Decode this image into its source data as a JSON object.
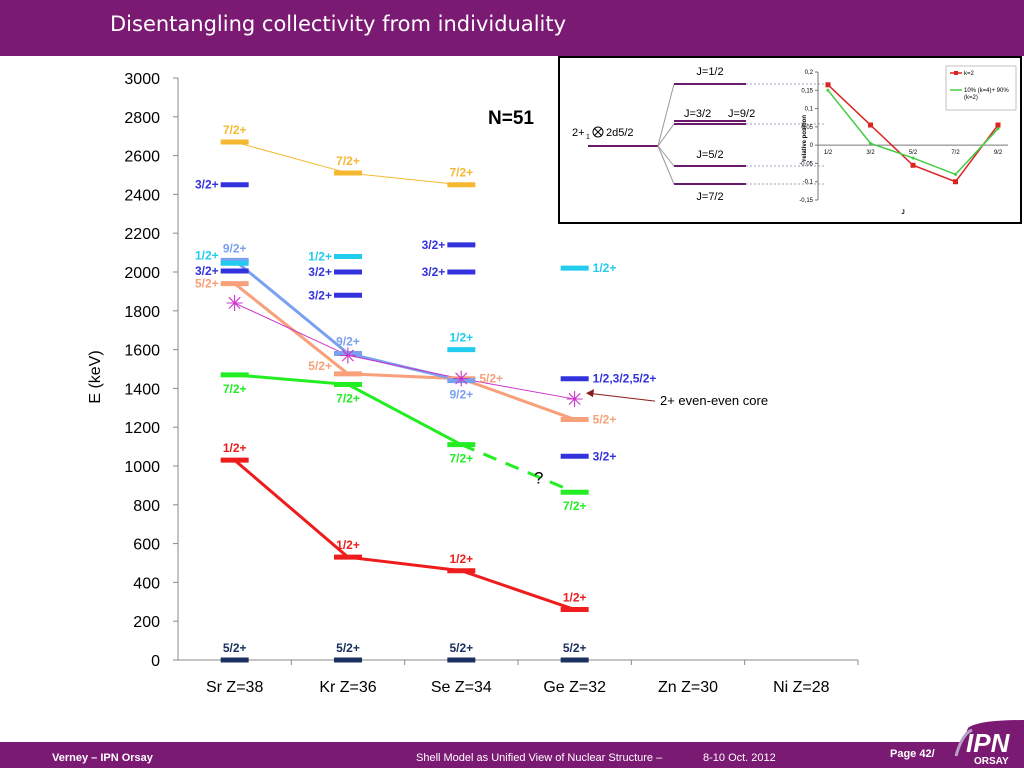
{
  "header": {
    "title": "Disentangling collectivity from individuality"
  },
  "footer": {
    "author": "Verney – IPN Orsay",
    "conference": "Shell Model as Unified View of Nuclear Structure –",
    "date": "8-10 Oct. 2012",
    "page": "Page 42/"
  },
  "logo": {
    "main": "IPN",
    "sub": "ORSAY"
  },
  "colors": {
    "brand": "#7b1a72",
    "red": "#ee1c1c",
    "green": "#22ee22",
    "orange": "#f7a07a",
    "lightblue": "#7aa0f0",
    "cyan": "#22ccee",
    "blue": "#3333dd",
    "yellow": "#f5b830",
    "magenta": "#cc33cc",
    "navy": "#1a3060"
  },
  "chart_data": [
    {
      "type": "level-scheme",
      "title": "N=51",
      "ylabel": "E (keV)",
      "ylim": [
        0,
        3000
      ],
      "yticks": [
        0,
        200,
        400,
        600,
        800,
        1000,
        1200,
        1400,
        1600,
        1800,
        2000,
        2200,
        2400,
        2600,
        2800,
        3000
      ],
      "categories": [
        "Sr Z=38",
        "Kr Z=36",
        "Se Z=34",
        "Ge Z=32",
        "Zn Z=30",
        "Ni Z=28"
      ],
      "levels": [
        {
          "cat": 0,
          "e": 0,
          "color": "navy",
          "label": "5/2+",
          "lpos": "above"
        },
        {
          "cat": 1,
          "e": 0,
          "color": "navy",
          "label": "5/2+",
          "lpos": "above"
        },
        {
          "cat": 2,
          "e": 0,
          "color": "navy",
          "label": "5/2+",
          "lpos": "above"
        },
        {
          "cat": 3,
          "e": 0,
          "color": "navy",
          "label": "5/2+",
          "lpos": "above"
        },
        {
          "cat": 0,
          "e": 1030,
          "color": "red",
          "label": "1/2+",
          "lpos": "above"
        },
        {
          "cat": 1,
          "e": 530,
          "color": "red",
          "label": "1/2+",
          "lpos": "above"
        },
        {
          "cat": 2,
          "e": 460,
          "color": "red",
          "label": "1/2+",
          "lpos": "above"
        },
        {
          "cat": 3,
          "e": 260,
          "color": "red",
          "label": "1/2+",
          "lpos": "above"
        },
        {
          "cat": 0,
          "e": 1470,
          "color": "green",
          "label": "7/2+",
          "lpos": "below"
        },
        {
          "cat": 1,
          "e": 1420,
          "color": "green",
          "label": "7/2+",
          "lpos": "below"
        },
        {
          "cat": 2,
          "e": 1110,
          "color": "green",
          "label": "7/2+",
          "lpos": "below"
        },
        {
          "cat": 3,
          "e": 865,
          "color": "green",
          "label": "7/2+",
          "lpos": "below"
        },
        {
          "cat": 0,
          "e": 1940,
          "color": "orange",
          "label": "5/2+",
          "lpos": "left"
        },
        {
          "cat": 1,
          "e": 1475,
          "color": "orange",
          "label": "5/2+",
          "lpos": "leftup"
        },
        {
          "cat": 2,
          "e": 1450,
          "color": "orange",
          "label": "5/2+",
          "lpos": "right"
        },
        {
          "cat": 3,
          "e": 1240,
          "color": "orange",
          "label": "5/2+",
          "lpos": "right"
        },
        {
          "cat": 0,
          "e": 2060,
          "color": "lightblue",
          "label": "9/2+",
          "lpos": "above"
        },
        {
          "cat": 1,
          "e": 1580,
          "color": "lightblue",
          "label": "9/2+",
          "lpos": "above"
        },
        {
          "cat": 2,
          "e": 1440,
          "color": "lightblue",
          "label": "9/2+",
          "lpos": "below"
        },
        {
          "cat": 0,
          "e": 2045,
          "color": "cyan",
          "label": "1/2+",
          "lpos": "leftup"
        },
        {
          "cat": 1,
          "e": 2080,
          "color": "cyan",
          "label": "1/2+",
          "lpos": "left"
        },
        {
          "cat": 2,
          "e": 1600,
          "color": "cyan",
          "label": "1/2+",
          "lpos": "above"
        },
        {
          "cat": 3,
          "e": 2020,
          "color": "cyan",
          "label": "1/2+",
          "lpos": "right"
        },
        {
          "cat": 0,
          "e": 2450,
          "color": "blue",
          "label": "3/2+",
          "lpos": "left"
        },
        {
          "cat": 0,
          "e": 2005,
          "color": "blue",
          "label": "3/2+",
          "lpos": "left"
        },
        {
          "cat": 1,
          "e": 2000,
          "color": "blue",
          "label": "3/2+",
          "lpos": "left"
        },
        {
          "cat": 1,
          "e": 1880,
          "color": "blue",
          "label": "3/2+",
          "lpos": "left"
        },
        {
          "cat": 2,
          "e": 2140,
          "color": "blue",
          "label": "3/2+",
          "lpos": "left"
        },
        {
          "cat": 2,
          "e": 2000,
          "color": "blue",
          "label": "3/2+",
          "lpos": "left"
        },
        {
          "cat": 3,
          "e": 1450,
          "color": "blue",
          "label": "1/2,3/2,5/2+",
          "lpos": "right"
        },
        {
          "cat": 3,
          "e": 1050,
          "color": "blue",
          "label": "3/2+",
          "lpos": "right"
        },
        {
          "cat": 0,
          "e": 2670,
          "color": "yellow",
          "label": "7/2+",
          "lpos": "above"
        },
        {
          "cat": 1,
          "e": 2510,
          "color": "yellow",
          "label": "7/2+",
          "lpos": "above"
        },
        {
          "cat": 2,
          "e": 2450,
          "color": "yellow",
          "label": "7/2+",
          "lpos": "above"
        }
      ],
      "lines": [
        {
          "color": "red",
          "points": [
            [
              0,
              1030
            ],
            [
              1,
              530
            ],
            [
              2,
              460
            ],
            [
              3,
              260
            ]
          ]
        },
        {
          "color": "green",
          "points": [
            [
              0,
              1470
            ],
            [
              1,
              1420
            ],
            [
              2,
              1110
            ]
          ]
        },
        {
          "color": "green",
          "dashed": true,
          "points": [
            [
              2,
              1110
            ],
            [
              3,
              865
            ]
          ]
        },
        {
          "color": "orange",
          "points": [
            [
              0,
              1940
            ],
            [
              1,
              1475
            ],
            [
              2,
              1450
            ],
            [
              3,
              1240
            ]
          ]
        },
        {
          "color": "lightblue",
          "points": [
            [
              0,
              2060
            ],
            [
              1,
              1580
            ],
            [
              2,
              1440
            ]
          ]
        },
        {
          "color": "yellow",
          "thin": true,
          "points": [
            [
              0,
              2670
            ],
            [
              1,
              2510
            ],
            [
              2,
              2450
            ]
          ]
        },
        {
          "color": "magenta",
          "thin": true,
          "points": [
            [
              0,
              1840
            ],
            [
              1,
              1570
            ],
            [
              2,
              1450
            ],
            [
              3,
              1345
            ]
          ]
        }
      ],
      "core_points": [
        [
          0,
          1840
        ],
        [
          1,
          1570
        ],
        [
          2,
          1450
        ],
        [
          3,
          1345
        ]
      ],
      "question_mark": "?",
      "core_annotation": "2+ even-even core"
    },
    {
      "type": "line",
      "xlabel": "J",
      "ylabel": "relative position",
      "categories": [
        "1/2",
        "3/2",
        "5/2",
        "7/2",
        "9/2"
      ],
      "ylim": [
        -0.15,
        0.2
      ],
      "yticks": [
        "0,2",
        "0,15",
        "0,1",
        "0,05",
        "0",
        "-0,05",
        "-0,1",
        "-0,15"
      ],
      "ytick_values": [
        0.2,
        0.15,
        0.1,
        0.05,
        0,
        -0.05,
        -0.1,
        -0.15
      ],
      "series": [
        {
          "name": "k=2",
          "color": "#dd2222",
          "values": [
            0.165,
            0.055,
            -0.055,
            -0.1,
            0.055
          ]
        },
        {
          "name": "10% (k=4)+ 90% (k=2)",
          "color": "#44cc44",
          "values": [
            0.15,
            0.005,
            -0.035,
            -0.08,
            0.045
          ]
        }
      ],
      "coupling": {
        "left_label": "2+",
        "left_sub": "1",
        "right_label": "2d5/2",
        "levels": [
          "J=1/2",
          "J=3/2",
          "J=9/2",
          "J=5/2",
          "J=7/2"
        ]
      }
    }
  ]
}
